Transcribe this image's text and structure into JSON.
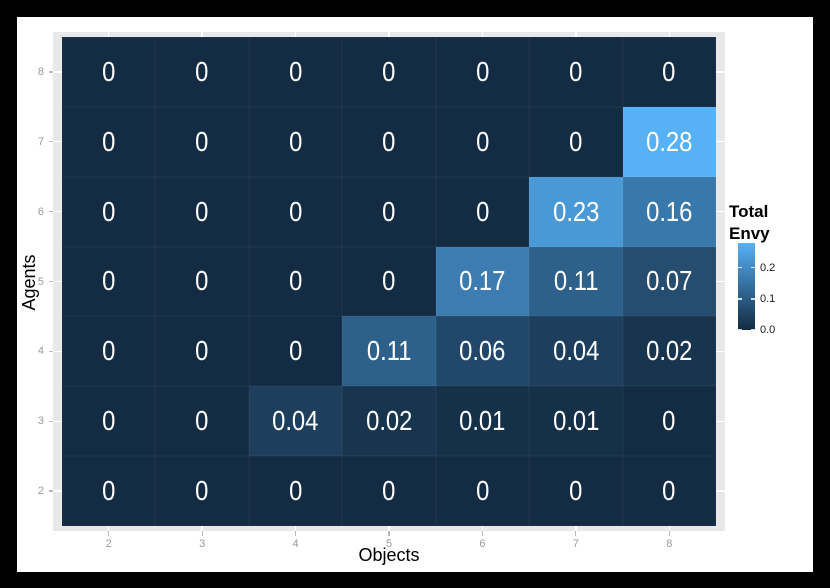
{
  "chart_data": {
    "type": "heatmap",
    "title": "",
    "xlabel": "Objects",
    "ylabel": "Agents",
    "x_categories": [
      "2",
      "3",
      "4",
      "5",
      "6",
      "7",
      "8"
    ],
    "y_categories": [
      "8",
      "7",
      "6",
      "5",
      "4",
      "3",
      "2"
    ],
    "series": [
      {
        "name": "agent-8",
        "values": [
          0,
          0,
          0,
          0,
          0,
          0,
          0
        ]
      },
      {
        "name": "agent-7",
        "values": [
          0,
          0,
          0,
          0,
          0,
          0,
          0.28
        ]
      },
      {
        "name": "agent-6",
        "values": [
          0,
          0,
          0,
          0,
          0,
          0.23,
          0.16
        ]
      },
      {
        "name": "agent-5",
        "values": [
          0,
          0,
          0,
          0,
          0.17,
          0.11,
          0.07
        ]
      },
      {
        "name": "agent-4",
        "values": [
          0,
          0,
          0,
          0.11,
          0.06,
          0.04,
          0.02
        ]
      },
      {
        "name": "agent-3",
        "values": [
          0,
          0,
          0.04,
          0.02,
          0.01,
          0.01,
          0
        ]
      },
      {
        "name": "agent-2",
        "values": [
          0,
          0,
          0,
          0,
          0,
          0,
          0
        ]
      }
    ],
    "vmin": 0,
    "vmax": 0.28,
    "color_low": "#132B43",
    "color_high": "#56B1F7",
    "panel_bg": "#E8E8E8",
    "grid": true,
    "legend": {
      "position": "right",
      "title_lines": [
        "Total",
        "Envy"
      ],
      "tick_labels": [
        "0.2",
        "0.1",
        "0.0"
      ],
      "tick_values": [
        0.2,
        0.1,
        0.0
      ]
    }
  }
}
